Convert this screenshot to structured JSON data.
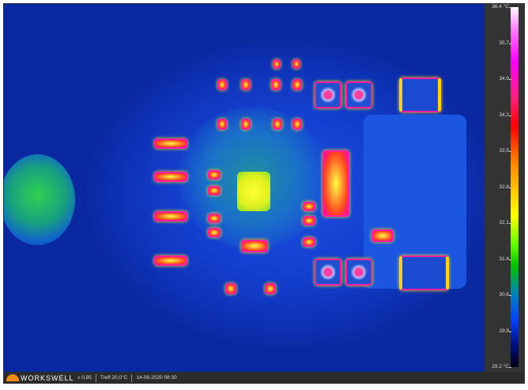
{
  "scale": {
    "unit": "°C",
    "max": "36,4",
    "min": "29,2",
    "labels": [
      "36,4 °C",
      "35,7",
      "34,9",
      "34,2",
      "33,5",
      "32,8",
      "32,1",
      "31,4",
      "30,6",
      "29,9",
      "29,2 °C"
    ],
    "colors": [
      "#ffffff",
      "#ff00ff",
      "#ff0000",
      "#ff8000",
      "#ffff00",
      "#00c000",
      "#0040ff",
      "#000010"
    ]
  },
  "footer": {
    "brand": "WORKSWELL",
    "emissivity": "ε 0,95",
    "reflected_temp": "Trefl 20,0°C",
    "datetime": "14-08-2020 08:30"
  },
  "image": {
    "background_color": "#1440d0",
    "hotspot_color": "#ffff00"
  }
}
